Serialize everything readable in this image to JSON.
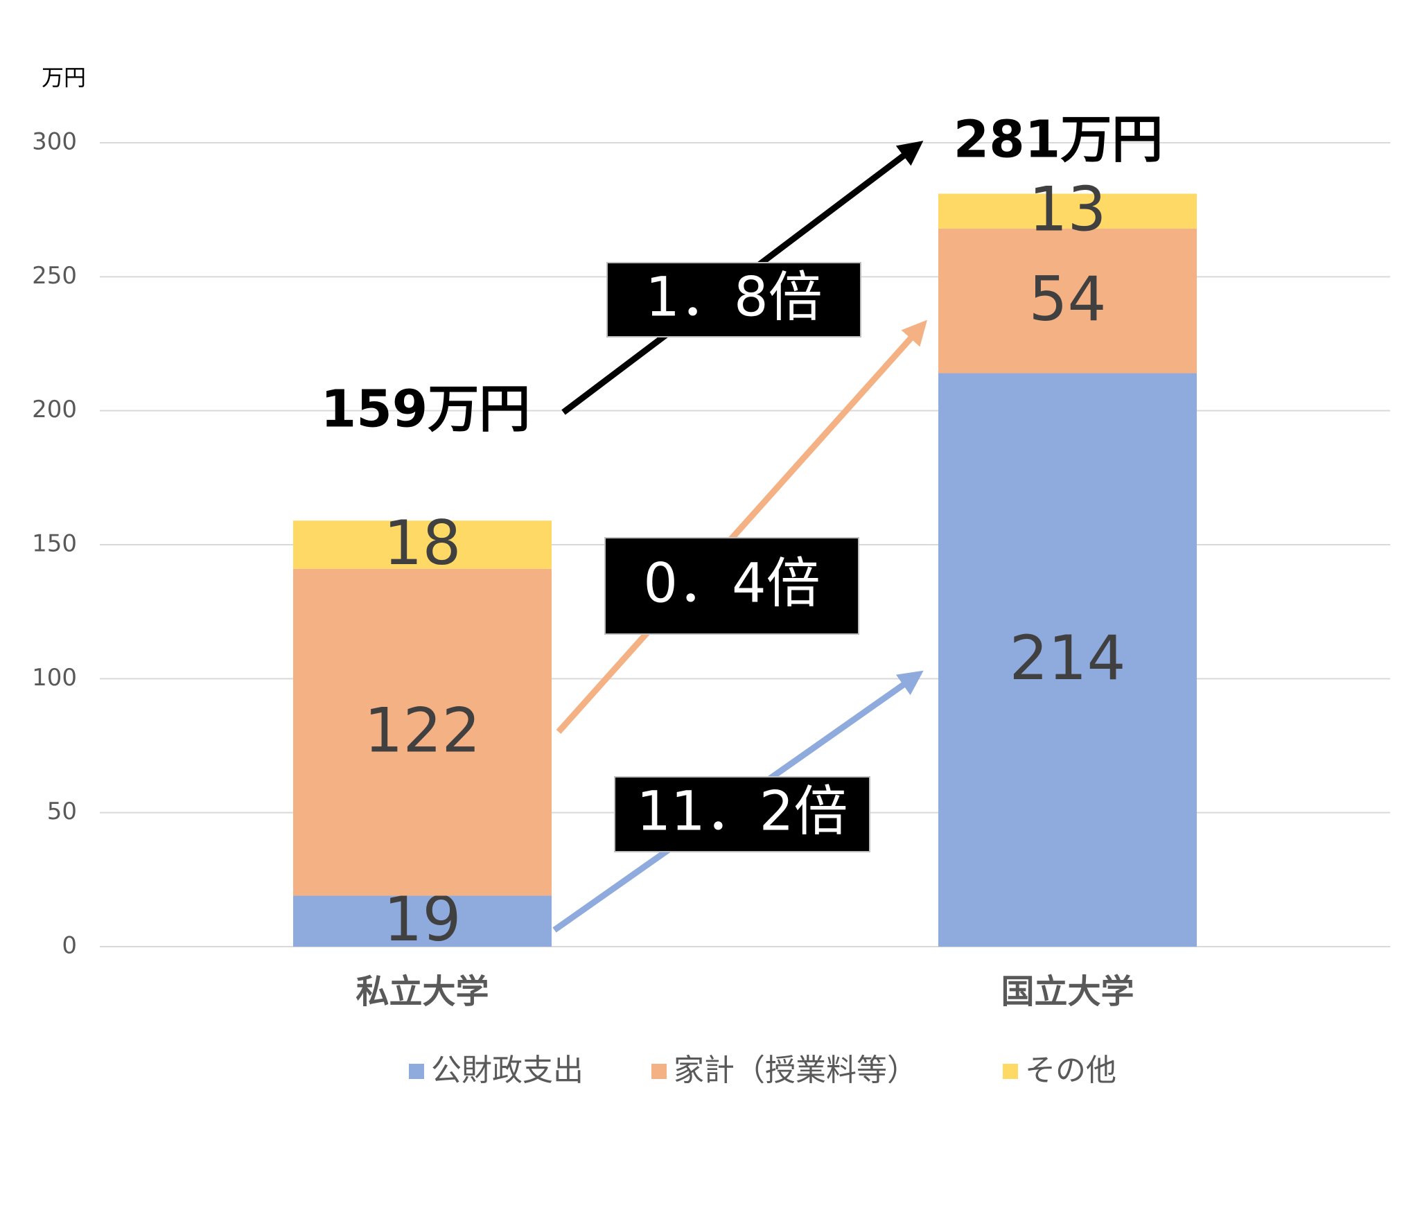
{
  "chart_data": {
    "type": "stacked-bar",
    "y_axis_label": "万円",
    "categories": [
      "私立大学",
      "国立大学"
    ],
    "series": [
      {
        "name": "公財政支出",
        "color": "#8faadc",
        "values": [
          19,
          214
        ]
      },
      {
        "name": "家計（授業料等）",
        "color": "#f4b183",
        "values": [
          122,
          54
        ]
      },
      {
        "name": "その他",
        "color": "#ffd966",
        "values": [
          18,
          13
        ]
      }
    ],
    "ylim": [
      0,
      300
    ],
    "yticks": [
      0,
      50,
      100,
      150,
      200,
      250,
      300
    ],
    "grid": true,
    "legend": "bottom",
    "annotations": [
      "159万円",
      "281万円",
      "1．8倍",
      "0．4倍",
      "11．2倍"
    ]
  }
}
